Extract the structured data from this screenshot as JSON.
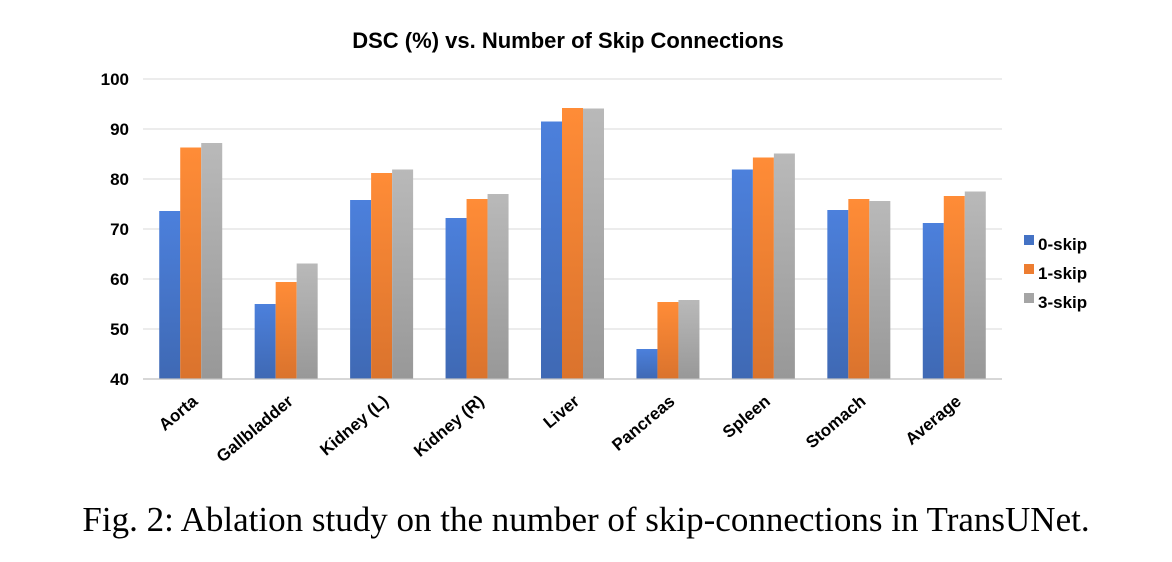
{
  "chart_data": {
    "type": "bar",
    "title": "DSC (%) vs. Number of Skip Connections",
    "xlabel": "",
    "ylabel": "",
    "categories": [
      "Aorta",
      "Gallbladder",
      "Kidney (L)",
      "Kidney (R)",
      "Liver",
      "Pancreas",
      "Spleen",
      "Stomach",
      "Average"
    ],
    "series": [
      {
        "name": "0-skip",
        "color": "#4472C4",
        "values": [
          73.6,
          55.0,
          75.8,
          72.2,
          91.5,
          46.0,
          81.9,
          73.8,
          71.2
        ]
      },
      {
        "name": "1-skip",
        "color": "#ED7D31",
        "values": [
          86.3,
          59.4,
          81.2,
          76.0,
          94.2,
          55.4,
          84.3,
          76.0,
          76.6
        ]
      },
      {
        "name": "3-skip",
        "color": "#A5A5A5",
        "values": [
          87.2,
          63.1,
          81.9,
          77.0,
          94.1,
          55.8,
          85.1,
          75.6,
          77.5
        ]
      }
    ],
    "ylim": [
      40,
      100
    ],
    "yticks": [
      40,
      50,
      60,
      70,
      80,
      90,
      100
    ],
    "grid": true,
    "legend_position": "right"
  },
  "caption": "Fig. 2: Ablation study on the number of skip-connections in TransUNet."
}
